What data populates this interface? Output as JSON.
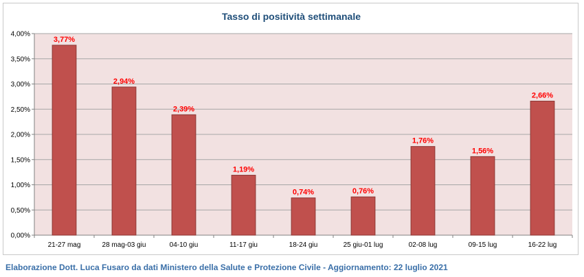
{
  "chart_data": {
    "type": "bar",
    "title": "Tasso di positività settimanale",
    "categories": [
      "21-27 mag",
      "28 mag-03 giu",
      "04-10 giu",
      "11-17 giu",
      "18-24 giu",
      "25 giu-01 lug",
      "02-08 lug",
      "09-15 lug",
      "16-22 lug"
    ],
    "values": [
      3.77,
      2.94,
      2.39,
      1.19,
      0.74,
      0.76,
      1.76,
      1.56,
      2.66
    ],
    "data_labels": [
      "3,77%",
      "2,94%",
      "2,39%",
      "1,19%",
      "0,74%",
      "0,76%",
      "1,76%",
      "1,56%",
      "2,66%"
    ],
    "y_ticks": [
      "0,00%",
      "0,50%",
      "1,00%",
      "1,50%",
      "2,00%",
      "2,50%",
      "3,00%",
      "3,50%",
      "4,00%"
    ],
    "ylim": [
      0,
      4
    ],
    "xlabel": "",
    "ylabel": "",
    "grid": true,
    "legend": "none",
    "colors": {
      "bar": "#c0504d",
      "bar_border": "#8c3836",
      "plot_background": "#f2e1e1",
      "label": "#ff0000",
      "title": "#1f4e79",
      "grid": "#a6a6a6"
    }
  },
  "footer": {
    "credit": "Elaborazione Dott. Luca Fusaro da dati Ministero della Salute e Protezione Civile - Aggiornamento: 22 luglio 2021"
  }
}
